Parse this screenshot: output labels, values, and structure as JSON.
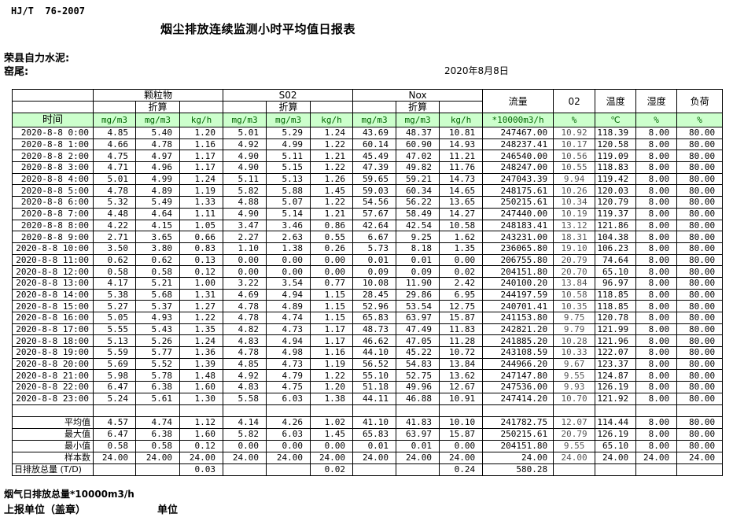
{
  "header": {
    "standard_code": "HJ/T  76-2007",
    "title": "烟尘排放连续监测小时平均值日报表",
    "company": "荣县自力水泥:",
    "location": "窑尾:",
    "date": "2020年8月8日"
  },
  "table": {
    "time_header": "时间",
    "converted_label": "折算",
    "groups": [
      {
        "label": "颗粒物"
      },
      {
        "label": "S02"
      },
      {
        "label": "Nox"
      }
    ],
    "single_headers": [
      {
        "label": "流量"
      },
      {
        "label": "02"
      },
      {
        "label": "温度"
      },
      {
        "label": "湿度"
      },
      {
        "label": "负荷"
      }
    ],
    "units": [
      "mg/m3",
      "mg/m3",
      "kg/h",
      "mg/m3",
      "mg/m3",
      "kg/h",
      "mg/m3",
      "mg/m3",
      "kg/h",
      "*10000m3/h",
      "%",
      "℃",
      "%",
      "%"
    ],
    "rows": [
      [
        "2020-8-8 0:00",
        "4.85",
        "5.40",
        "1.20",
        "5.01",
        "5.29",
        "1.24",
        "43.69",
        "48.37",
        "10.81",
        "247467.00",
        "10.92",
        "118.39",
        "8.00",
        "80.00"
      ],
      [
        "2020-8-8 1:00",
        "4.66",
        "4.78",
        "1.16",
        "4.92",
        "4.99",
        "1.22",
        "60.14",
        "60.90",
        "14.93",
        "248237.41",
        "10.17",
        "120.58",
        "8.00",
        "80.00"
      ],
      [
        "2020-8-8 2:00",
        "4.75",
        "4.97",
        "1.17",
        "4.90",
        "5.11",
        "1.21",
        "45.49",
        "47.02",
        "11.21",
        "246540.00",
        "10.56",
        "119.09",
        "8.00",
        "80.00"
      ],
      [
        "2020-8-8 3:00",
        "4.71",
        "4.96",
        "1.17",
        "4.90",
        "5.15",
        "1.22",
        "47.39",
        "49.82",
        "11.76",
        "248247.00",
        "10.55",
        "118.83",
        "8.00",
        "80.00"
      ],
      [
        "2020-8-8 4:00",
        "5.01",
        "4.99",
        "1.24",
        "5.11",
        "5.13",
        "1.26",
        "59.65",
        "59.21",
        "14.73",
        "247043.39",
        "9.94",
        "119.42",
        "8.00",
        "80.00"
      ],
      [
        "2020-8-8 5:00",
        "4.78",
        "4.89",
        "1.19",
        "5.82",
        "5.88",
        "1.45",
        "59.03",
        "60.34",
        "14.65",
        "248175.61",
        "10.26",
        "120.03",
        "8.00",
        "80.00"
      ],
      [
        "2020-8-8 6:00",
        "5.32",
        "5.49",
        "1.33",
        "4.88",
        "5.07",
        "1.22",
        "54.56",
        "56.22",
        "13.65",
        "250215.61",
        "10.34",
        "120.79",
        "8.00",
        "80.00"
      ],
      [
        "2020-8-8 7:00",
        "4.48",
        "4.64",
        "1.11",
        "4.90",
        "5.14",
        "1.21",
        "57.67",
        "58.49",
        "14.27",
        "247440.00",
        "10.19",
        "119.37",
        "8.00",
        "80.00"
      ],
      [
        "2020-8-8 8:00",
        "4.22",
        "4.15",
        "1.05",
        "3.47",
        "3.46",
        "0.86",
        "42.64",
        "42.54",
        "10.58",
        "248183.41",
        "13.12",
        "121.86",
        "8.00",
        "80.00"
      ],
      [
        "2020-8-8 9:00",
        "2.71",
        "3.65",
        "0.66",
        "2.27",
        "2.63",
        "0.55",
        "6.67",
        "9.25",
        "1.62",
        "243231.00",
        "18.31",
        "104.38",
        "8.00",
        "80.00"
      ],
      [
        "2020-8-8 10:00",
        "3.50",
        "3.80",
        "0.83",
        "1.10",
        "1.38",
        "0.26",
        "5.73",
        "8.18",
        "1.35",
        "236065.80",
        "19.10",
        "106.23",
        "8.00",
        "80.00"
      ],
      [
        "2020-8-8 11:00",
        "0.62",
        "0.62",
        "0.13",
        "0.00",
        "0.00",
        "0.00",
        "0.01",
        "0.01",
        "0.00",
        "206755.80",
        "20.79",
        "74.64",
        "8.00",
        "80.00"
      ],
      [
        "2020-8-8 12:00",
        "0.58",
        "0.58",
        "0.12",
        "0.00",
        "0.00",
        "0.00",
        "0.09",
        "0.09",
        "0.02",
        "204151.80",
        "20.70",
        "65.10",
        "8.00",
        "80.00"
      ],
      [
        "2020-8-8 13:00",
        "4.17",
        "5.21",
        "1.00",
        "3.22",
        "3.54",
        "0.77",
        "10.08",
        "11.90",
        "2.42",
        "240100.20",
        "13.84",
        "96.97",
        "8.00",
        "80.00"
      ],
      [
        "2020-8-8 14:00",
        "5.38",
        "5.68",
        "1.31",
        "4.69",
        "4.94",
        "1.15",
        "28.45",
        "29.86",
        "6.95",
        "244197.59",
        "10.58",
        "118.85",
        "8.00",
        "80.00"
      ],
      [
        "2020-8-8 15:00",
        "5.27",
        "5.37",
        "1.27",
        "4.78",
        "4.89",
        "1.15",
        "52.96",
        "53.54",
        "12.75",
        "240701.41",
        "10.35",
        "118.85",
        "8.00",
        "80.00"
      ],
      [
        "2020-8-8 16:00",
        "5.05",
        "4.93",
        "1.22",
        "4.78",
        "4.74",
        "1.15",
        "65.83",
        "63.97",
        "15.87",
        "241153.80",
        "9.75",
        "120.78",
        "8.00",
        "80.00"
      ],
      [
        "2020-8-8 17:00",
        "5.55",
        "5.43",
        "1.35",
        "4.82",
        "4.73",
        "1.17",
        "48.73",
        "47.49",
        "11.83",
        "242821.20",
        "9.79",
        "121.99",
        "8.00",
        "80.00"
      ],
      [
        "2020-8-8 18:00",
        "5.13",
        "5.26",
        "1.24",
        "4.83",
        "4.94",
        "1.17",
        "46.62",
        "47.05",
        "11.28",
        "241885.20",
        "10.28",
        "121.96",
        "8.00",
        "80.00"
      ],
      [
        "2020-8-8 19:00",
        "5.59",
        "5.77",
        "1.36",
        "4.78",
        "4.98",
        "1.16",
        "44.10",
        "45.22",
        "10.72",
        "243108.59",
        "10.33",
        "122.07",
        "8.00",
        "80.00"
      ],
      [
        "2020-8-8 20:00",
        "5.69",
        "5.52",
        "1.39",
        "4.85",
        "4.73",
        "1.19",
        "56.52",
        "54.83",
        "13.84",
        "244966.20",
        "9.67",
        "123.37",
        "8.00",
        "80.00"
      ],
      [
        "2020-8-8 21:00",
        "5.98",
        "5.78",
        "1.48",
        "4.92",
        "4.79",
        "1.22",
        "55.10",
        "52.75",
        "13.62",
        "247147.80",
        "9.55",
        "124.87",
        "8.00",
        "80.00"
      ],
      [
        "2020-8-8 22:00",
        "6.47",
        "6.38",
        "1.60",
        "4.83",
        "4.75",
        "1.20",
        "51.18",
        "49.96",
        "12.67",
        "247536.00",
        "9.93",
        "126.19",
        "8.00",
        "80.00"
      ],
      [
        "2020-8-8 23:00",
        "5.24",
        "5.61",
        "1.30",
        "5.58",
        "6.03",
        "1.38",
        "44.11",
        "46.88",
        "10.91",
        "247414.20",
        "10.70",
        "121.92",
        "8.00",
        "80.00"
      ]
    ],
    "summary_rows": [
      {
        "label": "平均值",
        "values": [
          "4.57",
          "4.74",
          "1.12",
          "4.14",
          "4.26",
          "1.02",
          "41.10",
          "41.83",
          "10.10",
          "241782.75",
          "12.07",
          "114.44",
          "8.00",
          "80.00"
        ]
      },
      {
        "label": "最大值",
        "values": [
          "6.47",
          "6.38",
          "1.60",
          "5.82",
          "6.03",
          "1.45",
          "65.83",
          "63.97",
          "15.87",
          "250215.61",
          "20.79",
          "126.19",
          "8.00",
          "80.00"
        ]
      },
      {
        "label": "最小值",
        "values": [
          "0.58",
          "0.58",
          "0.12",
          "0.00",
          "0.00",
          "0.00",
          "0.01",
          "0.01",
          "0.00",
          "204151.80",
          "9.55",
          "65.10",
          "8.00",
          "80.00"
        ]
      },
      {
        "label": "样本数",
        "values": [
          "24.00",
          "24.00",
          "24.00",
          "24.00",
          "24.00",
          "24.00",
          "24.00",
          "24.00",
          "24.00",
          "24.00",
          "24.00",
          "24.00",
          "24.00",
          "24.00"
        ]
      }
    ],
    "total_row": {
      "label": "日排放总量 (T/D)",
      "values": [
        "",
        "",
        "0.03",
        "",
        "",
        "0.02",
        "",
        "",
        "0.24",
        "580.28",
        "",
        "",
        "",
        ""
      ]
    }
  },
  "footer": {
    "flue_gas_note": "烟气日排放总量*10000m3/h",
    "reporting_unit_label": "上报单位（盖章）",
    "unit_label": "单位"
  },
  "colors": {
    "header_green": "#ccffcc",
    "unit_text_green": "#006600"
  }
}
